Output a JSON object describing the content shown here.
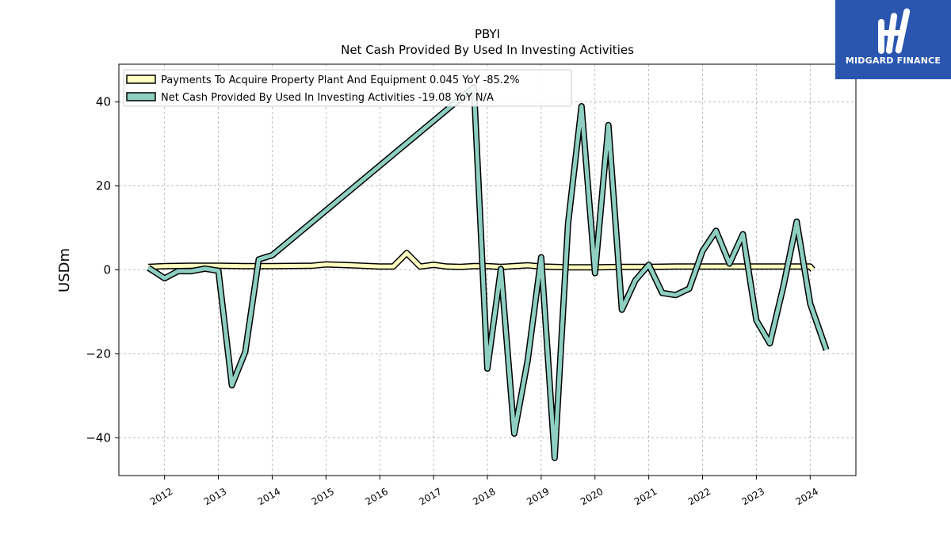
{
  "brand": {
    "name": "MIDGARD FINANCE",
    "bg_color": "#2a56b0"
  },
  "chart_data": {
    "type": "line",
    "ticker": "PBYI",
    "title": "Net Cash Provided By Used In Investing Activities",
    "ylabel": "USDm",
    "xlabel": "",
    "ylim": [
      -49,
      49
    ],
    "xlim": [
      2011.15,
      2024.85
    ],
    "yticks": [
      -40,
      -20,
      0,
      20,
      40
    ],
    "ytick_labels": [
      "−40",
      "−20",
      "0",
      "20",
      "40"
    ],
    "xticks": [
      2012,
      2013,
      2014,
      2015,
      2016,
      2017,
      2018,
      2019,
      2020,
      2021,
      2022,
      2023,
      2024
    ],
    "xtick_labels": [
      "2012",
      "2013",
      "2014",
      "2015",
      "2016",
      "2017",
      "2018",
      "2019",
      "2020",
      "2021",
      "2022",
      "2023",
      "2024"
    ],
    "grid": true,
    "legend_position": "top-left",
    "series": [
      {
        "name": "Payments To Acquire Property Plant And Equipment  0.045 YoY -85.2%",
        "color": "#ffffc0",
        "points": [
          [
            2011.7,
            0.7
          ],
          [
            2012.0,
            0.9
          ],
          [
            2012.5,
            1.0
          ],
          [
            2013.0,
            1.0
          ],
          [
            2013.5,
            0.9
          ],
          [
            2014.0,
            0.9
          ],
          [
            2014.75,
            1.0
          ],
          [
            2015.0,
            1.3
          ],
          [
            2015.5,
            1.1
          ],
          [
            2016.0,
            0.8
          ],
          [
            2016.25,
            0.8
          ],
          [
            2016.5,
            4.0
          ],
          [
            2016.75,
            0.8
          ],
          [
            2017.0,
            1.2
          ],
          [
            2017.25,
            0.8
          ],
          [
            2017.5,
            0.7
          ],
          [
            2017.75,
            0.9
          ],
          [
            2018.0,
            0.9
          ],
          [
            2018.25,
            0.7
          ],
          [
            2018.5,
            0.9
          ],
          [
            2018.75,
            1.1
          ],
          [
            2019.0,
            0.8
          ],
          [
            2019.5,
            0.6
          ],
          [
            2020.0,
            0.6
          ],
          [
            2020.5,
            0.7
          ],
          [
            2021.0,
            0.7
          ],
          [
            2021.5,
            0.8
          ],
          [
            2022.0,
            0.8
          ],
          [
            2022.5,
            0.8
          ],
          [
            2023.0,
            0.8
          ],
          [
            2023.5,
            0.8
          ],
          [
            2024.0,
            0.8
          ],
          [
            2024.05,
            0.045
          ]
        ]
      },
      {
        "name": "Net Cash Provided By Used In Investing Activities  -19.08 YoY N/A",
        "color": "#8ecfc2",
        "points": [
          [
            2011.7,
            0.5
          ],
          [
            2012.0,
            -2.0
          ],
          [
            2012.25,
            -0.3
          ],
          [
            2012.5,
            -0.3
          ],
          [
            2012.75,
            0.3
          ],
          [
            2013.0,
            -0.2
          ],
          [
            2013.25,
            -27.5
          ],
          [
            2013.5,
            -19.5
          ],
          [
            2013.75,
            2.5
          ],
          [
            2014.0,
            3.5
          ],
          [
            2017.75,
            43.5
          ],
          [
            2018.0,
            -23.5
          ],
          [
            2018.25,
            0.2
          ],
          [
            2018.5,
            -39.0
          ],
          [
            2018.75,
            -21.5
          ],
          [
            2019.0,
            3.0
          ],
          [
            2019.25,
            -44.8
          ],
          [
            2019.5,
            11.0
          ],
          [
            2019.75,
            39.0
          ],
          [
            2020.0,
            -0.8
          ],
          [
            2020.25,
            34.5
          ],
          [
            2020.5,
            -9.5
          ],
          [
            2020.75,
            -2.5
          ],
          [
            2021.0,
            1.2
          ],
          [
            2021.25,
            -5.5
          ],
          [
            2021.5,
            -6.0
          ],
          [
            2021.75,
            -4.5
          ],
          [
            2022.0,
            4.5
          ],
          [
            2022.25,
            9.3
          ],
          [
            2022.5,
            1.5
          ],
          [
            2022.75,
            8.5
          ],
          [
            2023.0,
            -12.0
          ],
          [
            2023.25,
            -17.5
          ],
          [
            2023.5,
            -4.0
          ],
          [
            2023.75,
            11.5
          ],
          [
            2024.0,
            -8.0
          ],
          [
            2024.3,
            -19.08
          ]
        ]
      }
    ]
  }
}
